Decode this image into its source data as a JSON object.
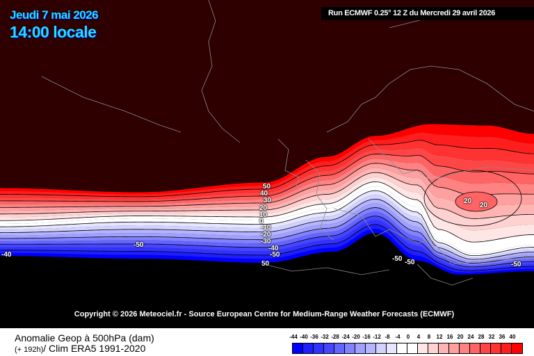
{
  "header": {
    "date": "Jeudi 7 mai 2026",
    "time": "14:00 locale",
    "run": "Run ECMWF 0.25° 12 Z du Mercredi 29 avril 2026"
  },
  "copyright": "Copyright © 2026 Meteociel.fr - Source European Centre for Medium-Range Weather Forecasts (ECMWF)",
  "contour_labels": [
    "50",
    "40",
    "30",
    "20",
    "10",
    "0",
    "-10",
    "-20",
    "-30",
    "-40",
    "-50",
    "50",
    "-50",
    "-40",
    "-50",
    "-50",
    "-50",
    "20",
    "20"
  ],
  "footer": {
    "title": "Anomalie Geop à 500hPa (dam)",
    "lead": "(+ 192h)",
    "clim": "/ Clim ERA5 1991-2020"
  },
  "legend": {
    "labels": [
      "-44",
      "-40",
      "-36",
      "-32",
      "-28",
      "-24",
      "-20",
      "-16",
      "-12",
      "-8",
      "-4",
      "0",
      "4",
      "8",
      "12",
      "16",
      "20",
      "24",
      "28",
      "32",
      "36",
      "40"
    ],
    "colors": [
      "#0000ff",
      "#1e1eff",
      "#3232ff",
      "#4646ff",
      "#6464ff",
      "#8282ff",
      "#a0a0ff",
      "#b4b4ff",
      "#d2d2ff",
      "#e6e6ff",
      "#ffffff",
      "#ffffff",
      "#ffe6e6",
      "#ffd2d2",
      "#ffb4b4",
      "#ffa0a0",
      "#ff8282",
      "#ff6464",
      "#ff4646",
      "#ff3232",
      "#ff1e1e",
      "#ff0000"
    ]
  },
  "colors": {
    "background": "#2e0000",
    "land_below": "#000000",
    "coast": "#8c8c8c",
    "header_text": "#1ee0ff"
  }
}
